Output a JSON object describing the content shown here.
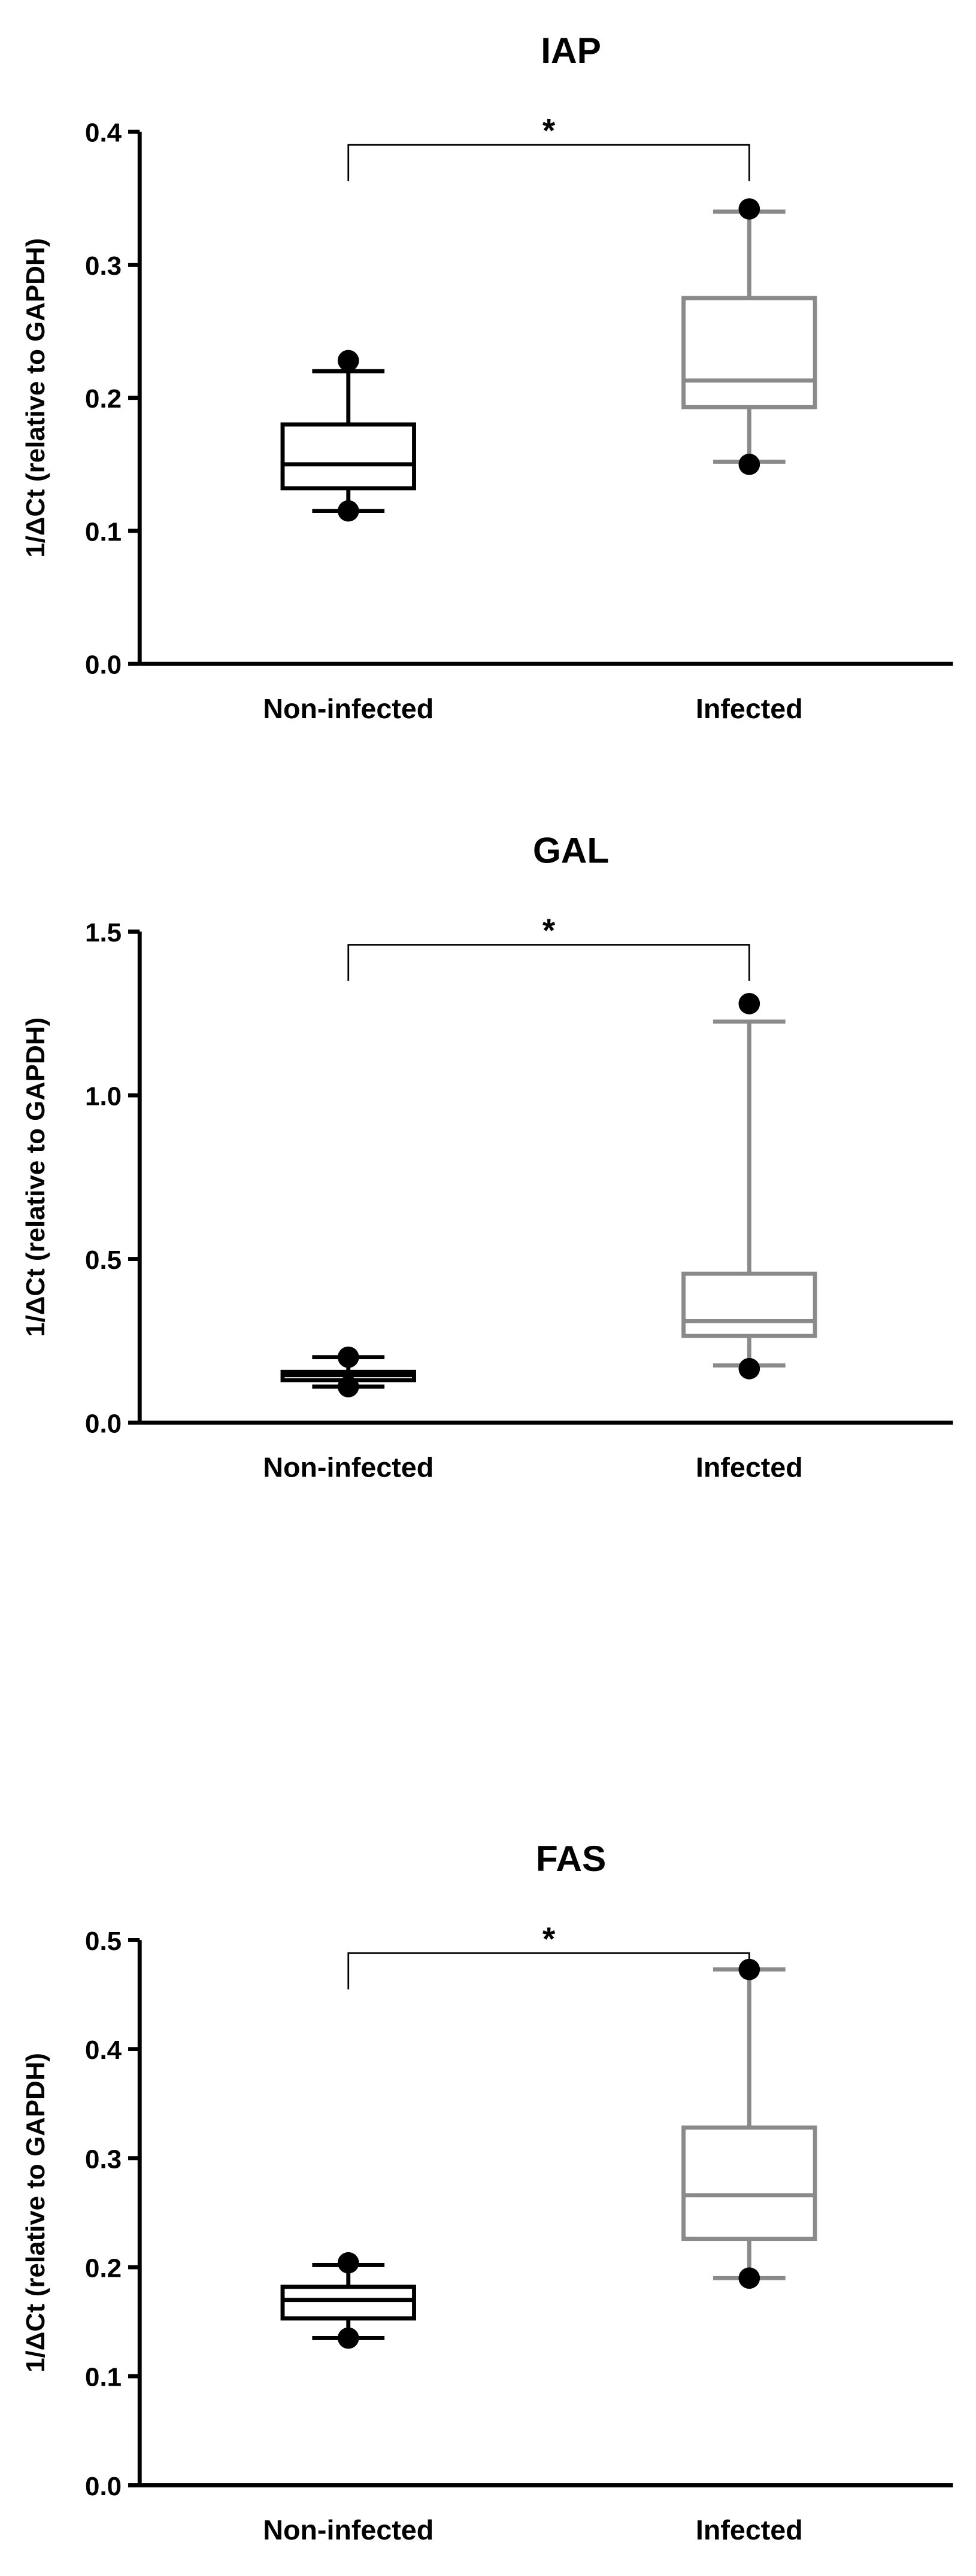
{
  "chart_data": [
    {
      "type": "box",
      "title": "IAP",
      "ylabel": "1/ΔCt (relative to GAPDH)",
      "annotation": "*",
      "categories": [
        "Non-infected",
        "Infected"
      ],
      "colors": [
        "#000000",
        "#8a8a8a"
      ],
      "ylim": [
        0,
        0.4
      ],
      "yticks": [
        {
          "value": 0,
          "label": "0.0"
        },
        0.1,
        0.2,
        0.3,
        0.4
      ],
      "boxes": [
        {
          "whisker_low": 0.115,
          "q1": 0.132,
          "median": 0.15,
          "q3": 0.18,
          "whisker_high": 0.22,
          "points": [
            0.228,
            0.115
          ]
        },
        {
          "whisker_low": 0.152,
          "q1": 0.193,
          "median": 0.213,
          "q3": 0.275,
          "whisker_high": 0.34,
          "points": [
            0.342,
            0.15
          ]
        }
      ]
    },
    {
      "type": "box",
      "title": "GAL",
      "ylabel": "1/ΔCt (relative to GAPDH)",
      "annotation": "*",
      "categories": [
        "Non-infected",
        "Infected"
      ],
      "colors": [
        "#000000",
        "#8a8a8a"
      ],
      "ylim": [
        0,
        1.5
      ],
      "yticks": [
        {
          "value": 0,
          "label": "0.0"
        },
        0.5,
        {
          "value": 1,
          "label": "1.0"
        },
        1.5
      ],
      "boxes": [
        {
          "whisker_low": 0.11,
          "q1": 0.13,
          "median": 0.145,
          "q3": 0.155,
          "whisker_high": 0.2,
          "points": [
            0.2,
            0.11
          ]
        },
        {
          "whisker_low": 0.175,
          "q1": 0.265,
          "median": 0.31,
          "q3": 0.455,
          "whisker_high": 1.225,
          "points": [
            1.28,
            0.165
          ]
        }
      ]
    },
    {
      "type": "box",
      "title": "FAS",
      "ylabel": "1/ΔCt (relative to GAPDH)",
      "annotation": "*",
      "categories": [
        "Non-infected",
        "Infected"
      ],
      "colors": [
        "#000000",
        "#8a8a8a"
      ],
      "ylim": [
        0,
        0.5
      ],
      "yticks": [
        {
          "value": 0,
          "label": "0.0"
        },
        0.1,
        0.2,
        0.3,
        0.4,
        0.5
      ],
      "boxes": [
        {
          "whisker_low": 0.135,
          "q1": 0.153,
          "median": 0.17,
          "q3": 0.182,
          "whisker_high": 0.202,
          "points": [
            0.204,
            0.135
          ]
        },
        {
          "whisker_low": 0.19,
          "q1": 0.226,
          "median": 0.266,
          "q3": 0.328,
          "whisker_high": 0.473,
          "points": [
            0.473,
            0.19
          ]
        }
      ]
    }
  ]
}
